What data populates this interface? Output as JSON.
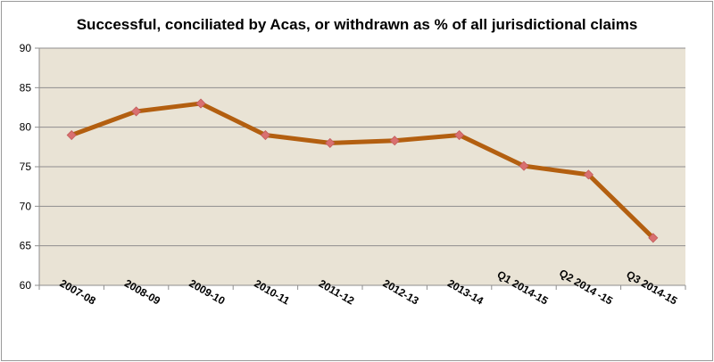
{
  "chart_data": {
    "type": "line",
    "title": "Successful, conciliated by Acas, or withdrawn as % of all jurisdictional claims",
    "xlabel": "",
    "ylabel": "",
    "categories": [
      "2007-08",
      "2008-09",
      "2009-10",
      "2010-11",
      "2011-12",
      "2012-13",
      "2013-14",
      "Q1 2014-15",
      "Q2 2014 -15",
      "Q3 2014-15"
    ],
    "series": [
      {
        "values": [
          79,
          82,
          83,
          79,
          78,
          78.3,
          79,
          75.1,
          74,
          66
        ]
      }
    ],
    "ylim": [
      60,
      90
    ],
    "yticks": [
      60,
      65,
      70,
      75,
      80,
      85,
      90
    ],
    "grid": true,
    "legend": "none",
    "colors": {
      "plot_background": "#e9e3d5",
      "gridline": "#8e8e8e",
      "line": "#b35f10",
      "marker": "#d97070"
    }
  }
}
